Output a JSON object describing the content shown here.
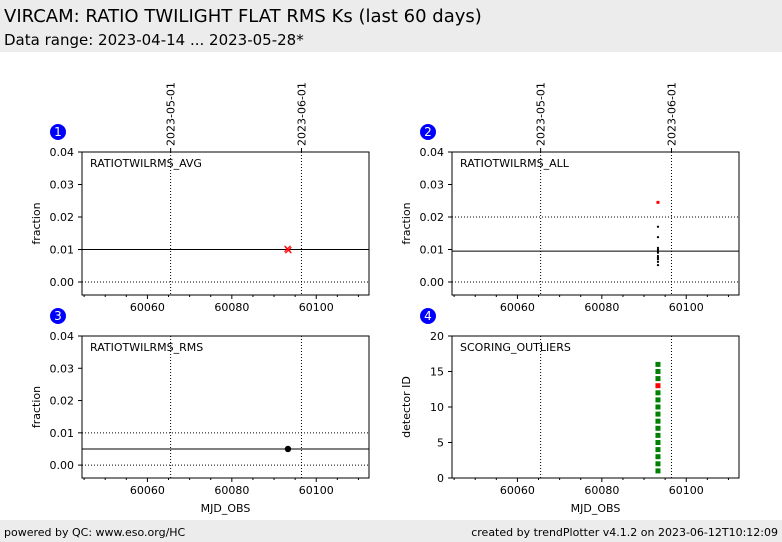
{
  "header": {
    "title": "VIRCAM: RATIO TWILIGHT FLAT RMS Ks (last 60 days)",
    "subtitle": "Data range: 2023-04-14 ... 2023-05-28*"
  },
  "footer": {
    "left": "powered by QC: www.eso.org/HC",
    "right": "created by trendPlotter v4.1.2 on 2023-06-12T10:12:09"
  },
  "colors": {
    "accent": "#0000ff",
    "flag": "#ff0000",
    "ok": "#008000",
    "header_bg": "#ececec"
  },
  "chart_data": [
    {
      "id": "1",
      "type": "scatter",
      "label": "RATIOTWILRMS_AVG",
      "xlabel": "",
      "ylabel": "fraction",
      "xlim": [
        60044.5,
        60112.5
      ],
      "ylim": [
        -0.004,
        0.04
      ],
      "xticks": [
        60060,
        60080,
        60100
      ],
      "yticks": [
        "0.00",
        "0.01",
        "0.02",
        "0.03",
        "0.04"
      ],
      "date_markers": [
        {
          "x": 60065.5,
          "label": "2023-05-01"
        },
        {
          "x": 60096.5,
          "label": "2023-06-01"
        }
      ],
      "hlines": [
        {
          "y": 0.0,
          "style": "dotted"
        },
        {
          "y": 0.01,
          "style": "solid"
        }
      ],
      "points": [
        {
          "x": 60093.2,
          "y": 0.0102,
          "color": "#ff0000",
          "marker": "x"
        },
        {
          "x": 60093.4,
          "y": 0.0098,
          "color": "#ff0000",
          "marker": "x"
        }
      ]
    },
    {
      "id": "2",
      "type": "scatter",
      "label": "RATIOTWILRMS_ALL",
      "xlabel": "",
      "ylabel": "fraction",
      "xlim": [
        60044.5,
        60112.5
      ],
      "ylim": [
        -0.004,
        0.04
      ],
      "xticks": [
        60060,
        60080,
        60100
      ],
      "yticks": [
        "0.00",
        "0.01",
        "0.02",
        "0.03",
        "0.04"
      ],
      "date_markers": [
        {
          "x": 60065.5,
          "label": "2023-05-01"
        },
        {
          "x": 60096.5,
          "label": "2023-06-01"
        }
      ],
      "hlines": [
        {
          "y": 0.0,
          "style": "dotted"
        },
        {
          "y": 0.0095,
          "style": "solid"
        },
        {
          "y": 0.02,
          "style": "dotted"
        }
      ],
      "points": [
        {
          "x": 60093.3,
          "y": 0.0245,
          "color": "#ff0000",
          "marker": "square"
        },
        {
          "x": 60093.3,
          "y": 0.017,
          "color": "#000000",
          "marker": "dot"
        },
        {
          "x": 60093.3,
          "y": 0.0138,
          "color": "#000000",
          "marker": "dot"
        },
        {
          "x": 60093.3,
          "y": 0.0105,
          "color": "#000000",
          "marker": "dot"
        },
        {
          "x": 60093.3,
          "y": 0.01,
          "color": "#000000",
          "marker": "dot"
        },
        {
          "x": 60093.3,
          "y": 0.0095,
          "color": "#000000",
          "marker": "dot"
        },
        {
          "x": 60093.3,
          "y": 0.009,
          "color": "#000000",
          "marker": "dot"
        },
        {
          "x": 60093.3,
          "y": 0.008,
          "color": "#000000",
          "marker": "dot"
        },
        {
          "x": 60093.3,
          "y": 0.0075,
          "color": "#000000",
          "marker": "dot"
        },
        {
          "x": 60093.3,
          "y": 0.007,
          "color": "#000000",
          "marker": "dot"
        },
        {
          "x": 60093.3,
          "y": 0.0062,
          "color": "#000000",
          "marker": "dot"
        },
        {
          "x": 60093.3,
          "y": 0.0052,
          "color": "#000000",
          "marker": "dot"
        }
      ]
    },
    {
      "id": "3",
      "type": "scatter",
      "label": "RATIOTWILRMS_RMS",
      "xlabel": "MJD_OBS",
      "ylabel": "fraction",
      "xlim": [
        60044.5,
        60112.5
      ],
      "ylim": [
        -0.004,
        0.04
      ],
      "xticks": [
        60060,
        60080,
        60100
      ],
      "yticks": [
        "0.00",
        "0.01",
        "0.02",
        "0.03",
        "0.04"
      ],
      "date_markers": [
        {
          "x": 60065.5,
          "label": ""
        },
        {
          "x": 60096.5,
          "label": ""
        }
      ],
      "hlines": [
        {
          "y": 0.0,
          "style": "dotted"
        },
        {
          "y": 0.005,
          "style": "solid"
        },
        {
          "y": 0.01,
          "style": "dotted"
        }
      ],
      "points": [
        {
          "x": 60093.3,
          "y": 0.005,
          "color": "#000000",
          "marker": "circle"
        }
      ]
    },
    {
      "id": "4",
      "type": "scatter",
      "label": "SCORING_OUTLIERS",
      "xlabel": "MJD_OBS",
      "ylabel": "detector ID",
      "xlim": [
        60044.5,
        60112.5
      ],
      "ylim": [
        0,
        20
      ],
      "xticks": [
        60060,
        60080,
        60100
      ],
      "yticks": [
        "0",
        "5",
        "10",
        "15",
        "20"
      ],
      "date_markers": [
        {
          "x": 60065.5,
          "label": ""
        },
        {
          "x": 60096.5,
          "label": ""
        }
      ],
      "hlines": [],
      "points": [
        {
          "x": 60093.3,
          "y": 1,
          "color": "#008000",
          "marker": "square"
        },
        {
          "x": 60093.3,
          "y": 2,
          "color": "#008000",
          "marker": "square"
        },
        {
          "x": 60093.3,
          "y": 3,
          "color": "#008000",
          "marker": "square"
        },
        {
          "x": 60093.3,
          "y": 4,
          "color": "#008000",
          "marker": "square"
        },
        {
          "x": 60093.3,
          "y": 5,
          "color": "#008000",
          "marker": "square"
        },
        {
          "x": 60093.3,
          "y": 6,
          "color": "#008000",
          "marker": "square"
        },
        {
          "x": 60093.3,
          "y": 7,
          "color": "#008000",
          "marker": "square"
        },
        {
          "x": 60093.3,
          "y": 8,
          "color": "#008000",
          "marker": "square"
        },
        {
          "x": 60093.3,
          "y": 9,
          "color": "#008000",
          "marker": "square"
        },
        {
          "x": 60093.3,
          "y": 10,
          "color": "#008000",
          "marker": "square"
        },
        {
          "x": 60093.3,
          "y": 11,
          "color": "#008000",
          "marker": "square"
        },
        {
          "x": 60093.3,
          "y": 12,
          "color": "#008000",
          "marker": "square"
        },
        {
          "x": 60093.3,
          "y": 13,
          "color": "#ff0000",
          "marker": "square"
        },
        {
          "x": 60093.3,
          "y": 14,
          "color": "#008000",
          "marker": "square"
        },
        {
          "x": 60093.3,
          "y": 15,
          "color": "#008000",
          "marker": "square"
        },
        {
          "x": 60093.3,
          "y": 16,
          "color": "#008000",
          "marker": "square"
        }
      ]
    }
  ]
}
